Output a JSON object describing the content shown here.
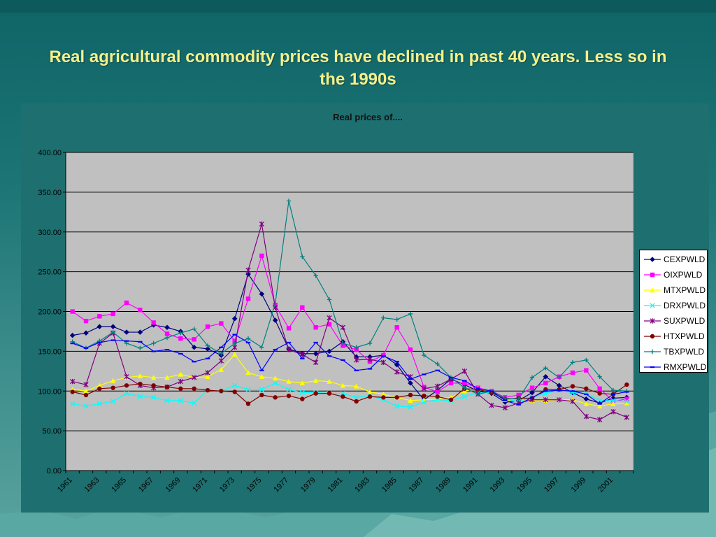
{
  "slide": {
    "title": "Real agricultural commodity prices have declined in past 40 years. Less so in the 1990s"
  },
  "chart_data": {
    "type": "line",
    "title": "Real prices of....",
    "xlabel": "",
    "ylabel": "",
    "ylim": [
      0,
      400
    ],
    "yticks": [
      "0.00",
      "50.00",
      "100.00",
      "150.00",
      "200.00",
      "250.00",
      "300.00",
      "350.00",
      "400.00"
    ],
    "x": [
      1961,
      1962,
      1963,
      1964,
      1965,
      1966,
      1967,
      1968,
      1969,
      1970,
      1971,
      1972,
      1973,
      1974,
      1975,
      1976,
      1977,
      1978,
      1979,
      1980,
      1981,
      1982,
      1983,
      1984,
      1985,
      1986,
      1987,
      1988,
      1989,
      1990,
      1991,
      1992,
      1993,
      1994,
      1995,
      1996,
      1997,
      1998,
      1999,
      2000,
      2001,
      2002
    ],
    "xtick_labels": [
      "1961",
      "1963",
      "1965",
      "1967",
      "1969",
      "1971",
      "1973",
      "1975",
      "1977",
      "1979",
      "1981",
      "1983",
      "1985",
      "1987",
      "1989",
      "1991",
      "1993",
      "1995",
      "1997",
      "1999",
      "2001"
    ],
    "grid": true,
    "legend_position": "right",
    "plot_background": "#c0c0c0",
    "series": [
      {
        "name": "CEXPWLD",
        "color": "#000080",
        "marker": "diamond",
        "values": [
          170,
          173,
          181,
          181,
          174,
          174,
          183,
          180,
          175,
          155,
          153,
          145,
          191,
          247,
          222,
          189,
          153,
          147,
          147,
          150,
          162,
          143,
          143,
          145,
          133,
          110,
          89,
          101,
          115,
          108,
          100,
          97,
          86,
          88,
          98,
          118,
          107,
          98,
          90,
          85,
          91,
          92
        ]
      },
      {
        "name": "OIXPWLD",
        "color": "#ff00ff",
        "marker": "square",
        "values": [
          200,
          188,
          194,
          197,
          211,
          202,
          186,
          172,
          166,
          165,
          181,
          185,
          163,
          216,
          270,
          208,
          179,
          205,
          180,
          184,
          157,
          152,
          137,
          145,
          180,
          152,
          105,
          99,
          110,
          110,
          104,
          100,
          92,
          95,
          104,
          110,
          118,
          123,
          126,
          103,
          87,
          90
        ]
      },
      {
        "name": "MTXPWLD",
        "color": "#ffff00",
        "marker": "triangle",
        "values": [
          102,
          100,
          107,
          113,
          117,
          119,
          117,
          117,
          121,
          117,
          118,
          127,
          146,
          123,
          118,
          116,
          112,
          110,
          113,
          112,
          107,
          106,
          99,
          96,
          92,
          88,
          89,
          90,
          92,
          100,
          103,
          100,
          89,
          87,
          88,
          88,
          89,
          89,
          84,
          81,
          84,
          85
        ]
      },
      {
        "name": "DRXPWLD",
        "color": "#00ffff",
        "marker": "x",
        "values": [
          84,
          81,
          84,
          87,
          97,
          93,
          92,
          88,
          88,
          85,
          101,
          100,
          107,
          102,
          102,
          110,
          102,
          98,
          98,
          97,
          97,
          92,
          94,
          89,
          81,
          80,
          86,
          89,
          88,
          93,
          98,
          98,
          90,
          87,
          92,
          97,
          101,
          98,
          97,
          88,
          88,
          87
        ]
      },
      {
        "name": "SUXPWLD",
        "color": "#800080",
        "marker": "star",
        "values": [
          112,
          108,
          160,
          173,
          118,
          107,
          104,
          105,
          112,
          117,
          123,
          138,
          155,
          252,
          310,
          205,
          152,
          146,
          136,
          192,
          180,
          139,
          140,
          136,
          124,
          118,
          103,
          106,
          115,
          125,
          96,
          82,
          79,
          85,
          89,
          89,
          89,
          87,
          68,
          64,
          74,
          67
        ]
      },
      {
        "name": "HTXPWLD",
        "color": "#800000",
        "marker": "circle",
        "values": [
          99,
          95,
          103,
          104,
          107,
          109,
          107,
          105,
          103,
          103,
          101,
          100,
          99,
          84,
          95,
          92,
          94,
          90,
          97,
          97,
          93,
          87,
          93,
          92,
          92,
          95,
          94,
          93,
          89,
          103,
          102,
          98,
          90,
          91,
          91,
          102,
          102,
          106,
          103,
          97,
          96,
          108
        ]
      },
      {
        "name": "TBXPWLD",
        "color": "#008080",
        "marker": "plus",
        "values": [
          162,
          154,
          163,
          174,
          160,
          154,
          160,
          167,
          173,
          178,
          157,
          147,
          160,
          166,
          155,
          210,
          339,
          269,
          245,
          215,
          160,
          155,
          160,
          192,
          190,
          197,
          145,
          134,
          117,
          104,
          96,
          100,
          91,
          90,
          117,
          129,
          117,
          136,
          139,
          118,
          101,
          100
        ]
      },
      {
        "name": "RMXPWLD",
        "color": "#0000ff",
        "marker": "dash",
        "values": [
          160,
          154,
          161,
          164,
          163,
          162,
          150,
          152,
          147,
          137,
          141,
          155,
          171,
          161,
          126,
          152,
          161,
          141,
          161,
          144,
          139,
          126,
          128,
          144,
          137,
          115,
          121,
          126,
          117,
          113,
          103,
          100,
          88,
          83,
          92,
          100,
          101,
          100,
          96,
          84,
          96,
          99
        ]
      }
    ]
  }
}
